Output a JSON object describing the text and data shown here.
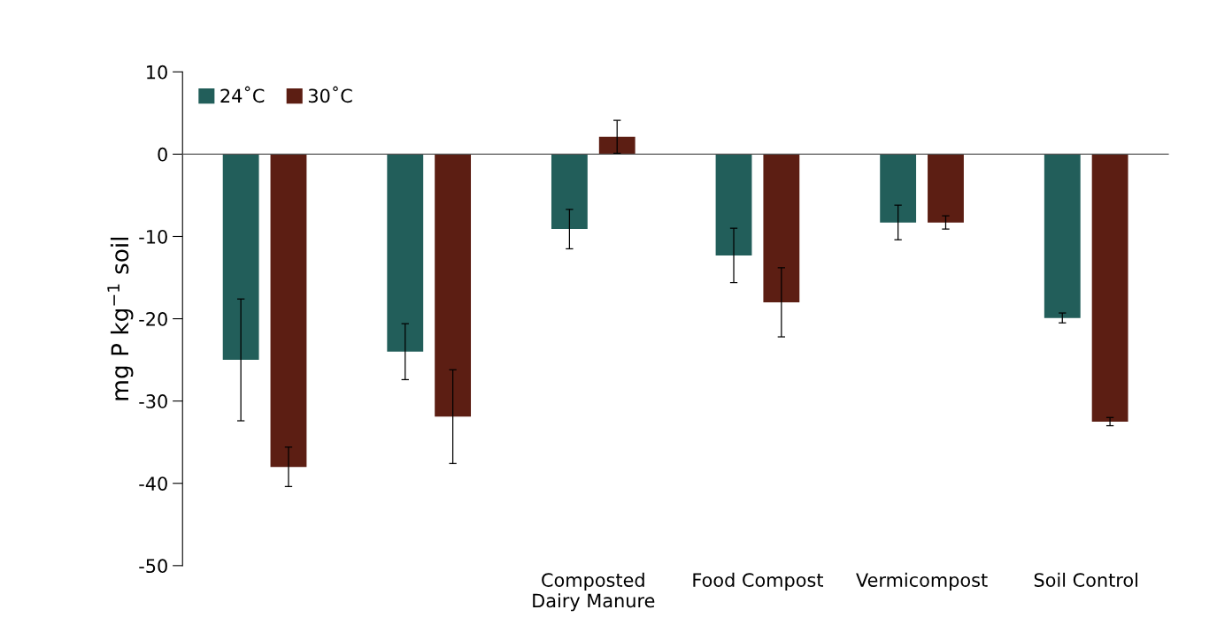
{
  "chart_data": {
    "type": "bar",
    "ylabel": "mg P kg$^{−1}$ soil",
    "categories": [
      null,
      null,
      "Composted\nDairy Manure",
      "Food Compost",
      "Vermicompost",
      "Soil Control"
    ],
    "series": [
      {
        "name": "24˚C",
        "color": "#225e5a",
        "values": [
          -25.0,
          -24.0,
          -9.1,
          -12.3,
          -8.3,
          -19.9
        ],
        "errors": [
          7.4,
          3.4,
          2.4,
          3.3,
          2.1,
          0.6
        ]
      },
      {
        "name": "30˚C",
        "color": "#5c1e13",
        "values": [
          -38.0,
          -31.9,
          2.1,
          -18.0,
          -8.3,
          -32.5
        ],
        "errors": [
          2.4,
          5.7,
          2.0,
          4.2,
          0.8,
          0.5
        ]
      }
    ],
    "ylim": [
      -50,
      10
    ],
    "yticks": [
      -50,
      -40,
      -30,
      -20,
      -10,
      0,
      10
    ],
    "legend": "top left"
  }
}
